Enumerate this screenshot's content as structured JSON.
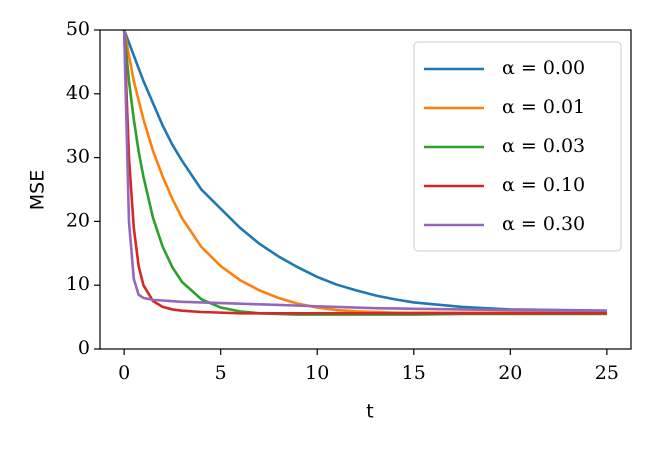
{
  "chart_data": {
    "type": "line",
    "x_label": "t",
    "y_label": "MSE",
    "x": [
      0,
      0.25,
      0.5,
      0.75,
      1,
      1.5,
      2,
      2.5,
      3,
      4,
      5,
      6,
      7,
      8,
      9,
      10,
      11,
      12,
      13,
      14,
      15,
      17.5,
      20,
      22.5,
      25
    ],
    "series": [
      {
        "name": "α = 0.00",
        "color": "#1f77b4",
        "values": [
          50,
          48,
          46,
          44,
          42,
          38.5,
          35,
          32,
          29.5,
          25,
          22,
          19,
          16.5,
          14.5,
          12.8,
          11.3,
          10.1,
          9.2,
          8.4,
          7.8,
          7.3,
          6.6,
          6.2,
          6.1,
          6.0
        ]
      },
      {
        "name": "α = 0.01",
        "color": "#ff7f0e",
        "values": [
          50,
          46,
          42,
          39,
          36,
          31,
          27,
          23.5,
          20.5,
          16,
          13,
          10.8,
          9.2,
          8,
          7.1,
          6.5,
          6.1,
          5.9,
          5.8,
          5.7,
          5.7,
          5.7,
          5.7,
          5.7,
          5.7
        ]
      },
      {
        "name": "α = 0.03",
        "color": "#2ca02c",
        "values": [
          50,
          42,
          36,
          31,
          27,
          20.5,
          16,
          12.8,
          10.5,
          7.8,
          6.5,
          5.9,
          5.6,
          5.5,
          5.4,
          5.4,
          5.4,
          5.4,
          5.4,
          5.4,
          5.4,
          5.5,
          5.5,
          5.5,
          5.5
        ]
      },
      {
        "name": "α = 0.10",
        "color": "#d62728",
        "values": [
          50,
          30,
          19,
          13,
          10,
          7.5,
          6.6,
          6.2,
          6.0,
          5.8,
          5.7,
          5.6,
          5.6,
          5.6,
          5.6,
          5.6,
          5.6,
          5.6,
          5.6,
          5.6,
          5.6,
          5.6,
          5.6,
          5.6,
          5.6
        ]
      },
      {
        "name": "α = 0.30",
        "color": "#9467bd",
        "values": [
          50,
          20,
          11,
          8.5,
          8,
          7.7,
          7.6,
          7.5,
          7.4,
          7.3,
          7.2,
          7.1,
          7.0,
          6.9,
          6.8,
          6.7,
          6.6,
          6.5,
          6.4,
          6.35,
          6.3,
          6.2,
          6.1,
          6.05,
          6.0
        ]
      }
    ],
    "xlim": [
      -1.25,
      26.25
    ],
    "xticks": [
      0,
      5,
      10,
      15,
      20,
      25
    ],
    "ylim": [
      0,
      50
    ],
    "yticks": [
      0,
      10,
      20,
      30,
      40,
      50
    ],
    "grid": false,
    "legend": "upper right"
  }
}
